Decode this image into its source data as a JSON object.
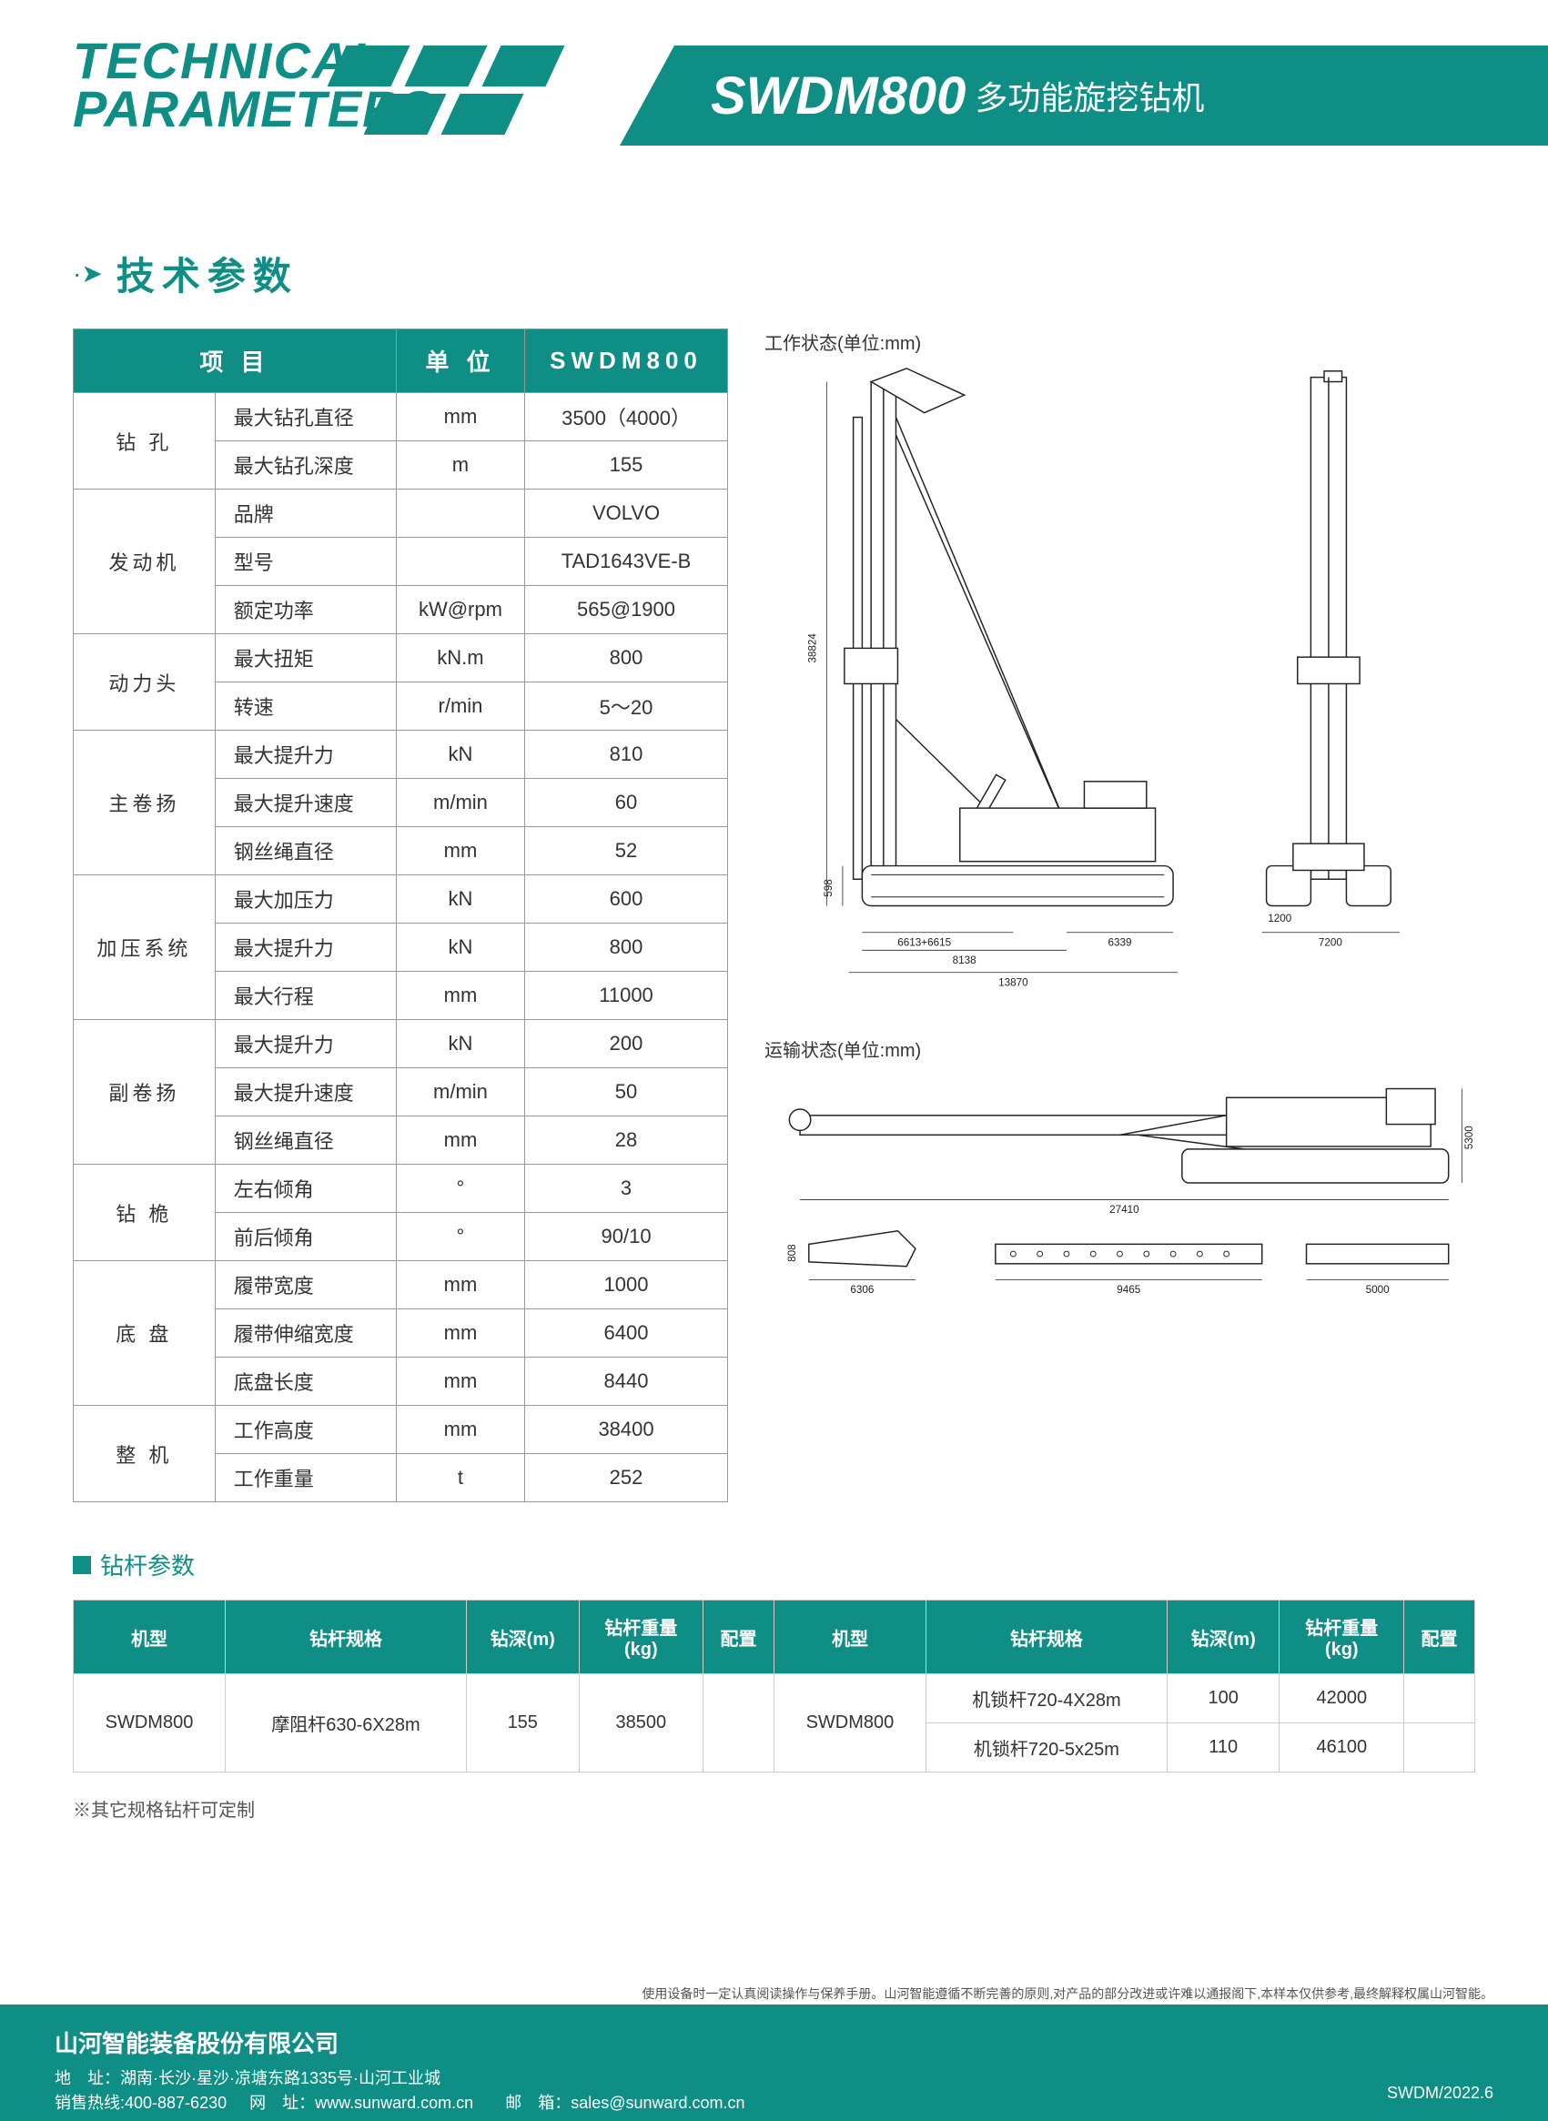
{
  "header": {
    "title_line1": "TECHNICAL",
    "title_line2": "PARAMETERS",
    "model": "SWDM800",
    "subtitle": "多功能旋挖钻机"
  },
  "section_title": "技术参数",
  "spec_table": {
    "headers": [
      "项 目",
      "单 位",
      "SWDM800"
    ],
    "groups": [
      {
        "name": "钻 孔",
        "rows": [
          {
            "item": "最大钻孔直径",
            "unit": "mm",
            "val": "3500（4000）"
          },
          {
            "item": "最大钻孔深度",
            "unit": "m",
            "val": "155"
          }
        ]
      },
      {
        "name": "发动机",
        "rows": [
          {
            "item": "品牌",
            "unit": "",
            "val": "VOLVO"
          },
          {
            "item": "型号",
            "unit": "",
            "val": "TAD1643VE-B"
          },
          {
            "item": "额定功率",
            "unit": "kW@rpm",
            "val": "565@1900"
          }
        ]
      },
      {
        "name": "动力头",
        "rows": [
          {
            "item": "最大扭矩",
            "unit": "kN.m",
            "val": "800"
          },
          {
            "item": "转速",
            "unit": "r/min",
            "val": "5～20"
          }
        ]
      },
      {
        "name": "主卷扬",
        "rows": [
          {
            "item": "最大提升力",
            "unit": "kN",
            "val": "810"
          },
          {
            "item": "最大提升速度",
            "unit": "m/min",
            "val": "60"
          },
          {
            "item": "钢丝绳直径",
            "unit": "mm",
            "val": "52"
          }
        ]
      },
      {
        "name": "加压系统",
        "rows": [
          {
            "item": "最大加压力",
            "unit": "kN",
            "val": "600"
          },
          {
            "item": "最大提升力",
            "unit": "kN",
            "val": "800"
          },
          {
            "item": "最大行程",
            "unit": "mm",
            "val": "11000"
          }
        ]
      },
      {
        "name": "副卷扬",
        "rows": [
          {
            "item": "最大提升力",
            "unit": "kN",
            "val": "200"
          },
          {
            "item": "最大提升速度",
            "unit": "m/min",
            "val": "50"
          },
          {
            "item": "钢丝绳直径",
            "unit": "mm",
            "val": "28"
          }
        ]
      },
      {
        "name": "钻 桅",
        "rows": [
          {
            "item": "左右倾角",
            "unit": "°",
            "val": "3"
          },
          {
            "item": "前后倾角",
            "unit": "°",
            "val": "90/10"
          }
        ]
      },
      {
        "name": "底 盘",
        "rows": [
          {
            "item": "履带宽度",
            "unit": "mm",
            "val": "1000"
          },
          {
            "item": "履带伸缩宽度",
            "unit": "mm",
            "val": "6400"
          },
          {
            "item": "底盘长度",
            "unit": "mm",
            "val": "8440"
          }
        ]
      },
      {
        "name": "整 机",
        "rows": [
          {
            "item": "工作高度",
            "unit": "mm",
            "val": "38400"
          },
          {
            "item": "工作重量",
            "unit": "t",
            "val": "252"
          }
        ]
      }
    ]
  },
  "diagrams": {
    "working_label": "工作状态(单位:mm)",
    "transport_label": "运输状态(单位:mm)",
    "dims": {
      "height": "38824",
      "base_dim1": "6613+6615",
      "base_width": "8138",
      "total_width": "13870",
      "rear": "6339",
      "side_width": "7200",
      "side_inner": "1200",
      "mast_down": "598",
      "transport_len": "27410",
      "transport_h": "5300",
      "kelly_h": "808",
      "kelly_len1": "6306",
      "kelly_len2": "9465",
      "kelly_len3": "5000"
    }
  },
  "rod_section": {
    "title": "钻杆参数",
    "headers": [
      "机型",
      "钻杆规格",
      "钻深(m)",
      "钻杆重量(kg)",
      "配置",
      "机型",
      "钻杆规格",
      "钻深(m)",
      "钻杆重量(kg)",
      "配置"
    ],
    "rows": [
      {
        "model_l": "SWDM800",
        "spec_l": "摩阻杆630-6X28m",
        "depth_l": "155",
        "weight_l": "38500",
        "cfg_l": "",
        "model_r": "SWDM800",
        "spec_r1": "机锁杆720-4X28m",
        "depth_r1": "100",
        "weight_r1": "42000",
        "cfg_r1": "",
        "spec_r2": "机锁杆720-5x25m",
        "depth_r2": "110",
        "weight_r2": "46100",
        "cfg_r2": ""
      }
    ],
    "note": "※其它规格钻杆可定制"
  },
  "disclaimer": "使用设备时一定认真阅读操作与保养手册。山河智能遵循不断完善的原则,对产品的部分改进或许难以通报阁下,本样本仅供参考,最终解释权属山河智能。",
  "footer": {
    "company": "山河智能装备股份有限公司",
    "address": "地　址：湖南·长沙·星沙·凉塘东路1335号·山河工业城",
    "hotline": "销售热线:400-887-6230",
    "website_label": "网　址：",
    "website": "www.sunward.com.cn",
    "email_label": "邮　箱：",
    "email": "sales@sunward.com.cn",
    "doc_id": "SWDM/2022.6"
  },
  "colors": {
    "primary": "#0e8e84",
    "text": "#333333",
    "border": "#999999"
  }
}
